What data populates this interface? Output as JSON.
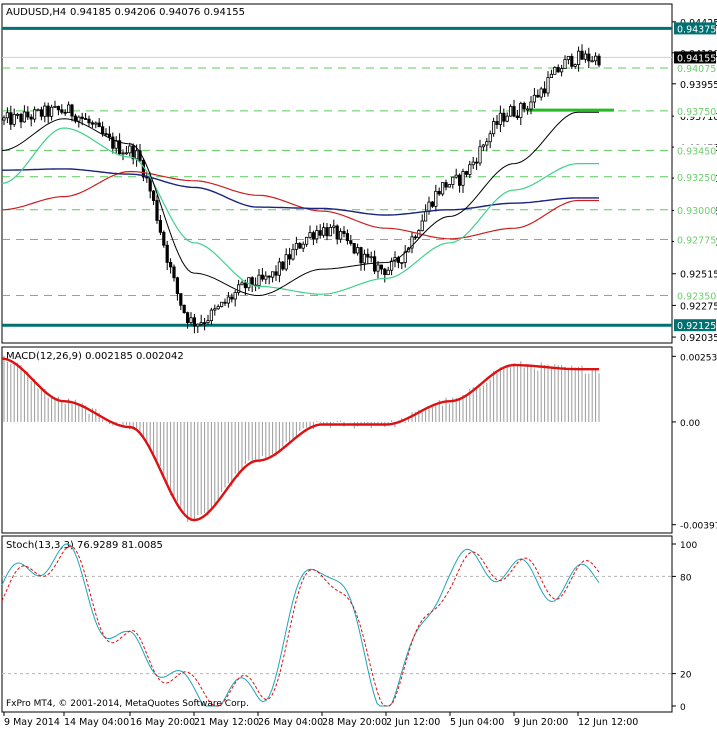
{
  "header": {
    "symbol": "AUDUSD,H4",
    "ohlc": "0.94185 0.94206 0.94076 0.94155"
  },
  "price_panel": {
    "ticks": [
      "0.94425",
      "0.94190",
      "0.93955",
      "0.93710",
      "0.93475",
      "0.93240",
      "0.92995",
      "0.92760",
      "0.92515",
      "0.92275",
      "0.92035"
    ],
    "levels": [
      {
        "label": "0.94375",
        "value": 0.94375,
        "style": "resistance",
        "color": "#007070"
      },
      {
        "label": "0.94075",
        "value": 0.94075,
        "style": "dashed",
        "color": "#22bb22"
      },
      {
        "label": "0.93750",
        "value": 0.9375,
        "style": "dashed",
        "color": "#22bb22"
      },
      {
        "label": "0.93450",
        "value": 0.9345,
        "style": "dashed",
        "color": "#22bb22"
      },
      {
        "label": "0.93250",
        "value": 0.9325,
        "style": "dashed",
        "color": "#22bb22"
      },
      {
        "label": "0.93000",
        "value": 0.93,
        "style": "dashed",
        "color": "#22bb22"
      },
      {
        "label": "0.92775",
        "value": 0.92775,
        "style": "dashed",
        "color": "#22bb22"
      },
      {
        "label": "0.92350",
        "value": 0.9235,
        "style": "dashed",
        "color": "#22bb22"
      },
      {
        "label": "0.92125",
        "value": 0.92125,
        "style": "support",
        "color": "#007070"
      }
    ],
    "current_price_label": "0.94155",
    "current_price": 0.94155
  },
  "macd_panel": {
    "label": "MACD(12,26,9) 0.002185 0.002042",
    "ticks": [
      "0.002538",
      "0.00",
      "-0.003977"
    ]
  },
  "stoch_panel": {
    "label": "Stoch(13,3,3) 76.9289 81.0085",
    "ticks": [
      "100",
      "80",
      "20",
      "0"
    ],
    "copyright": "FxPro MT4, © 2001-2014, MetaQuotes Software Corp."
  },
  "time_axis": {
    "labels": [
      "9 May 2014",
      "14 May 04:00",
      "16 May 20:00",
      "21 May 12:00",
      "26 May 04:00",
      "28 May 20:00",
      "2 Jun 12:00",
      "5 Jun 04:00",
      "9 Jun 20:00",
      "12 Jun 12:00"
    ]
  },
  "colors": {
    "resistance_support": "#007070",
    "pivot_lines": "#22bb22",
    "ma_fast": "#000000",
    "ma_green": "#3ed18a",
    "ma_blue": "#1a237e",
    "ma_red": "#cc1f1f",
    "macd_signal": "#dd1111",
    "stoch_main": "#1fa5b8",
    "stoch_signal": "#dd1111"
  },
  "chart_data": {
    "type": "line",
    "instrument": "AUDUSD",
    "timeframe": "H4",
    "close_path": {
      "x": [
        "9 May 2014",
        "14 May 04:00",
        "16 May 20:00",
        "21 May 12:00",
        "26 May 04:00",
        "28 May 20:00",
        "2 Jun 12:00",
        "5 Jun 04:00",
        "9 Jun 20:00",
        "12 Jun 12:00"
      ],
      "values": [
        0.9368,
        0.9375,
        0.9345,
        0.9215,
        0.9245,
        0.9285,
        0.9255,
        0.932,
        0.9375,
        0.9415
      ]
    },
    "ma_fast": [
      0.9345,
      0.9369,
      0.935,
      0.9252,
      0.9235,
      0.9255,
      0.926,
      0.9295,
      0.9335,
      0.9374
    ],
    "ma_green": [
      0.932,
      0.9362,
      0.934,
      0.9275,
      0.9242,
      0.9236,
      0.9248,
      0.9275,
      0.9315,
      0.9335
    ],
    "ma_blue": [
      0.933,
      0.9331,
      0.9327,
      0.9317,
      0.9302,
      0.9301,
      0.9296,
      0.93,
      0.9305,
      0.9309
    ],
    "ma_red": [
      0.93,
      0.931,
      0.9329,
      0.9322,
      0.9311,
      0.9299,
      0.9286,
      0.9278,
      0.9286,
      0.9307
    ],
    "macd_signal": [
      0.00245,
      0.0008,
      -0.0002,
      -0.0038,
      -0.0015,
      -0.0001,
      -0.0001,
      0.0008,
      0.0022,
      0.002042
    ],
    "stoch_main": [
      72,
      90,
      40,
      2,
      15,
      85,
      10,
      80,
      85,
      76.9289
    ],
    "stoch_signal": [
      70,
      88,
      42,
      4,
      14,
      82,
      12,
      78,
      84,
      81.0085
    ]
  }
}
